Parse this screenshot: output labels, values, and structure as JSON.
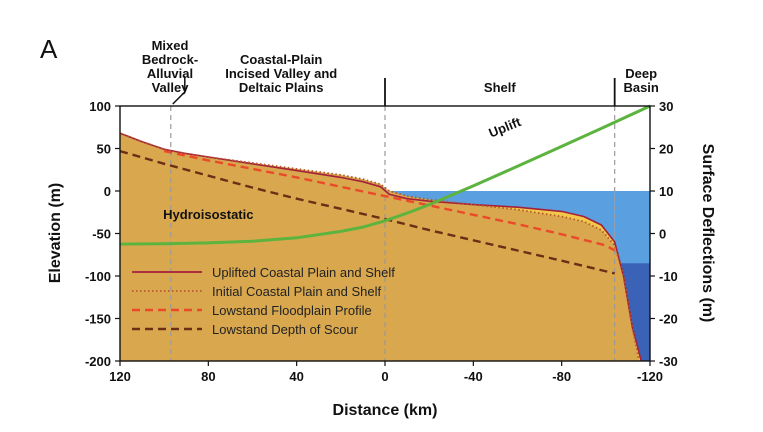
{
  "panel_label": "A",
  "colors": {
    "sediment": "#d9a84e",
    "sediment_light": "#f2c84a",
    "water_shelf": "#5aa0e0",
    "water_deep": "#3a63b8",
    "uplifted": "#a5203a",
    "initial": "#b5572a",
    "lowstand_floodplain": "#ea4a2a",
    "lowstand_scour": "#6b2e16",
    "uplift_curve": "#5cb33e",
    "divider": "#999999"
  },
  "regions": [
    {
      "lines": [
        "Mixed",
        "Bedrock-",
        "Alluvial",
        "Valley"
      ]
    },
    {
      "lines": [
        "Coastal-Plain",
        "Incised Valley and",
        "Deltaic Plains"
      ]
    },
    {
      "lines": [
        "Shelf"
      ]
    },
    {
      "lines": [
        "Deep",
        "Basin"
      ]
    }
  ],
  "chart_data": {
    "type": "area",
    "xlabel": "Distance (km)",
    "ylabel": "Elevation (m)",
    "y2label": "Surface Deflections (m)",
    "xlim": [
      120,
      -120
    ],
    "ylim": [
      -200,
      100
    ],
    "y2lim": [
      -30,
      30
    ],
    "xticks": [
      120,
      80,
      40,
      0,
      -40,
      -80,
      -120
    ],
    "yticks": [
      100,
      50,
      0,
      -50,
      -100,
      -150,
      -200
    ],
    "y2ticks": [
      30,
      20,
      10,
      0,
      -10,
      -20,
      -30
    ],
    "sea_level": 0,
    "shelf_break_x": -104,
    "deep_basin_floor": -85,
    "region_boundaries": [
      97,
      0,
      -104
    ],
    "series": [
      {
        "name": "Uplifted Coastal Plain and Shelf",
        "style": "solid",
        "axis": "left",
        "x": [
          120,
          110,
          100,
          90,
          80,
          60,
          40,
          20,
          10,
          2,
          -2,
          -10,
          -20,
          -40,
          -60,
          -80,
          -90,
          -98,
          -104,
          -108,
          -112,
          -116
        ],
        "y": [
          68,
          58,
          49,
          44,
          40,
          32,
          24,
          16,
          11,
          5,
          -4,
          -9,
          -12,
          -16,
          -19,
          -24,
          -30,
          -40,
          -60,
          -100,
          -160,
          -200
        ]
      },
      {
        "name": "Initial Coastal Plain and Shelf",
        "style": "dotted",
        "axis": "left",
        "x": [
          120,
          110,
          100,
          90,
          80,
          60,
          40,
          20,
          10,
          2,
          -2,
          -10,
          -20,
          -40,
          -60,
          -80,
          -90,
          -98,
          -104,
          -108,
          -112,
          -115
        ],
        "y": [
          68,
          58,
          49,
          44,
          40,
          33,
          26,
          19,
          14,
          8,
          0,
          -6,
          -10,
          -16,
          -22,
          -30,
          -36,
          -46,
          -64,
          -100,
          -160,
          -200
        ]
      },
      {
        "name": "Lowstand Floodplain Profile",
        "style": "dashed",
        "axis": "left",
        "x": [
          100,
          80,
          60,
          40,
          20,
          0,
          -20,
          -40,
          -60,
          -80,
          -100,
          -104
        ],
        "y": [
          47,
          36,
          26,
          16,
          5,
          -6,
          -17,
          -28,
          -39,
          -51,
          -64,
          -70
        ]
      },
      {
        "name": "Lowstand Depth of Scour",
        "style": "dashed",
        "axis": "left",
        "x": [
          120,
          100,
          80,
          60,
          40,
          20,
          0,
          -20,
          -40,
          -60,
          -80,
          -104
        ],
        "y": [
          47,
          32,
          18,
          4,
          -9,
          -21,
          -33,
          -46,
          -58,
          -70,
          -82,
          -97
        ]
      },
      {
        "name": "Uplift",
        "style": "solid",
        "axis": "right",
        "x": [
          120,
          100,
          80,
          60,
          40,
          20,
          10,
          0,
          -10,
          -20,
          -40,
          -60,
          -80,
          -100,
          -120
        ],
        "y": [
          -2.5,
          -2.4,
          -2.2,
          -1.8,
          -1,
          0.5,
          1.5,
          3,
          4.8,
          6.8,
          11.2,
          15.8,
          20.5,
          25.2,
          30
        ]
      }
    ],
    "legend": [
      "Uplifted Coastal Plain and Shelf",
      "Initial Coastal Plain and Shelf",
      "Lowstand Floodplain Profile",
      "Lowstand Depth of Scour"
    ],
    "legend_position": "bottom-left",
    "annotations": [
      {
        "text": "Uplift",
        "x": -55,
        "y": 24
      },
      {
        "text": "Hydroisostatic",
        "x": 80,
        "y": -33
      }
    ]
  }
}
